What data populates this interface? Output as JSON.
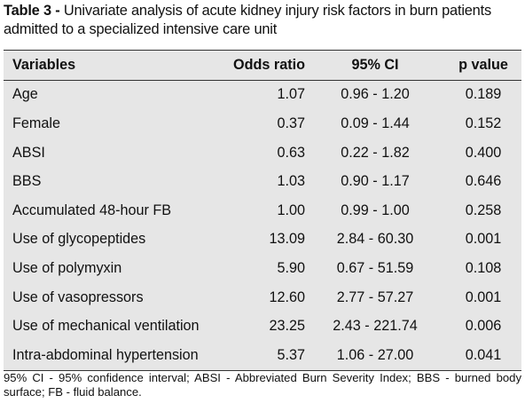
{
  "caption": {
    "label": "Table 3 -",
    "text": "Univariate analysis of acute kidney injury risk factors in burn patients admitted to a specialized intensive care unit"
  },
  "table": {
    "headers": [
      "Variables",
      "Odds ratio",
      "95% CI",
      "p value"
    ],
    "rows": [
      [
        "Age",
        "1.07",
        "0.96 - 1.20",
        "0.189"
      ],
      [
        "Female",
        "0.37",
        "0.09 - 1.44",
        "0.152"
      ],
      [
        "ABSI",
        "0.63",
        "0.22 - 1.82",
        "0.400"
      ],
      [
        "BBS",
        "1.03",
        "0.90 - 1.17",
        "0.646"
      ],
      [
        "Accumulated 48-hour FB",
        "1.00",
        "0.99 - 1.00",
        "0.258"
      ],
      [
        "Use of glycopeptides",
        "13.09",
        "2.84 - 60.30",
        "0.001"
      ],
      [
        "Use of polymyxin",
        "5.90",
        "0.67 - 51.59",
        "0.108"
      ],
      [
        "Use of vasopressors",
        "12.60",
        "2.77 - 57.27",
        "0.001"
      ],
      [
        "Use of mechanical ventilation",
        "23.25",
        "2.43 - 221.74",
        "0.006"
      ],
      [
        "Intra-abdominal hypertension",
        "5.37",
        "1.06 - 27.00",
        "0.041"
      ]
    ]
  },
  "footnote": "95% CI - 95% confidence interval; ABSI - Abbreviated Burn Severity Index; BBS - burned body surface; FB - fluid balance."
}
